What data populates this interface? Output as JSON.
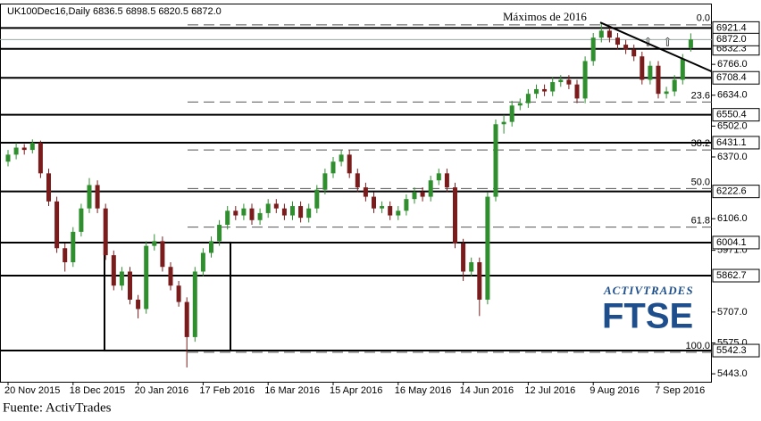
{
  "chart_data": {
    "type": "candlestick",
    "title": "UK100Dec16,Daily  6836.5 6898.5 6820.5 6872.0",
    "annotation": "Máximos de 2016",
    "source": "Fuente: ActivTrades",
    "logo_brand": "ActivTrades",
    "logo_index": "FTSE",
    "up_color": "#2f8f2f",
    "down_color": "#7a1c1c",
    "ylim": [
      5409,
      7022
    ],
    "yticks": [
      {
        "value": 6766,
        "label": "6766.0"
      },
      {
        "value": 6634,
        "label": "6634.0"
      },
      {
        "value": 6502,
        "label": "6502.0"
      },
      {
        "value": 6370,
        "label": "6370.0"
      },
      {
        "value": 6106,
        "label": "6106.0"
      },
      {
        "value": 5971,
        "label": "5971.0"
      },
      {
        "value": 5707,
        "label": "5707.0"
      },
      {
        "value": 5575,
        "label": "5575.0"
      },
      {
        "value": 5443,
        "label": "5443.0"
      }
    ],
    "levels": [
      6921.4,
      6832.3,
      6708.4,
      6550.4,
      6431.1,
      6222.6,
      6004.1,
      5862.7,
      5542.3
    ],
    "price_line": {
      "value": 6872,
      "label": "6872.0"
    },
    "fib_levels": [
      {
        "name": "0.0",
        "price": 6935
      },
      {
        "name": "23.6",
        "price": 6605
      },
      {
        "name": "38.2",
        "price": 6400
      },
      {
        "name": "50.0",
        "price": 6235
      },
      {
        "name": "61.8",
        "price": 6070
      },
      {
        "name": "100.0",
        "price": 5535
      }
    ],
    "trendline": [
      6945,
      6735
    ],
    "categories": [
      "20 Nov 2015",
      null,
      null,
      null,
      null,
      null,
      null,
      null,
      "18 Dec 2015",
      null,
      null,
      null,
      null,
      null,
      null,
      null,
      "20 Jan 2016",
      null,
      null,
      null,
      null,
      null,
      null,
      null,
      "17 Feb 2016",
      null,
      null,
      null,
      null,
      null,
      null,
      null,
      "16 Mar 2016",
      null,
      null,
      null,
      null,
      null,
      null,
      null,
      "15 Apr 2016",
      null,
      null,
      null,
      null,
      null,
      null,
      null,
      "16 May 2016",
      null,
      null,
      null,
      null,
      null,
      null,
      null,
      "14 Jun 2016",
      null,
      null,
      null,
      null,
      null,
      null,
      null,
      "12 Jul 2016",
      null,
      null,
      null,
      null,
      null,
      null,
      null,
      "9 Aug 2016",
      null,
      null,
      null,
      null,
      null,
      null,
      null,
      "7 Sep 2016",
      null,
      null,
      null,
      null
    ],
    "ohlc": [
      [
        6350,
        6400,
        6330,
        6380
      ],
      [
        6380,
        6430,
        6360,
        6410
      ],
      [
        6410,
        6425,
        6380,
        6400
      ],
      [
        6400,
        6445,
        6385,
        6430
      ],
      [
        6430,
        6440,
        6280,
        6300
      ],
      [
        6300,
        6320,
        6160,
        6180
      ],
      [
        6180,
        6200,
        5960,
        5980
      ],
      [
        5980,
        6000,
        5880,
        5920
      ],
      [
        5920,
        6070,
        5900,
        6050
      ],
      [
        6050,
        6170,
        6030,
        6150
      ],
      [
        6150,
        6280,
        6130,
        6250
      ],
      [
        6250,
        6270,
        6130,
        6150
      ],
      [
        6150,
        6170,
        5930,
        5950
      ],
      [
        5950,
        5970,
        5800,
        5820
      ],
      [
        5820,
        5900,
        5800,
        5880
      ],
      [
        5880,
        5900,
        5740,
        5760
      ],
      [
        5760,
        5780,
        5680,
        5720
      ],
      [
        5720,
        6010,
        5700,
        5990
      ],
      [
        5990,
        6040,
        5970,
        6010
      ],
      [
        6010,
        6030,
        5880,
        5900
      ],
      [
        5900,
        5920,
        5800,
        5820
      ],
      [
        5820,
        5840,
        5730,
        5750
      ],
      [
        5750,
        5770,
        5470,
        5600
      ],
      [
        5600,
        5900,
        5580,
        5880
      ],
      [
        5880,
        5980,
        5860,
        5960
      ],
      [
        5960,
        6030,
        5940,
        6010
      ],
      [
        6010,
        6100,
        5990,
        6080
      ],
      [
        6080,
        6160,
        6060,
        6140
      ],
      [
        6140,
        6160,
        6100,
        6120
      ],
      [
        6120,
        6170,
        6100,
        6150
      ],
      [
        6150,
        6170,
        6080,
        6100
      ],
      [
        6100,
        6150,
        6080,
        6130
      ],
      [
        6130,
        6190,
        6110,
        6170
      ],
      [
        6170,
        6190,
        6130,
        6150
      ],
      [
        6150,
        6170,
        6100,
        6120
      ],
      [
        6120,
        6180,
        6100,
        6160
      ],
      [
        6160,
        6180,
        6090,
        6110
      ],
      [
        6110,
        6170,
        6090,
        6150
      ],
      [
        6150,
        6250,
        6130,
        6230
      ],
      [
        6230,
        6320,
        6210,
        6300
      ],
      [
        6300,
        6370,
        6280,
        6350
      ],
      [
        6350,
        6400,
        6330,
        6380
      ],
      [
        6380,
        6400,
        6280,
        6300
      ],
      [
        6300,
        6320,
        6220,
        6240
      ],
      [
        6240,
        6260,
        6180,
        6200
      ],
      [
        6200,
        6220,
        6130,
        6150
      ],
      [
        6150,
        6180,
        6130,
        6160
      ],
      [
        6160,
        6180,
        6100,
        6120
      ],
      [
        6120,
        6160,
        6100,
        6140
      ],
      [
        6140,
        6210,
        6120,
        6190
      ],
      [
        6190,
        6240,
        6170,
        6220
      ],
      [
        6220,
        6240,
        6180,
        6200
      ],
      [
        6200,
        6290,
        6180,
        6270
      ],
      [
        6270,
        6320,
        6250,
        6300
      ],
      [
        6300,
        6320,
        6220,
        6240
      ],
      [
        6240,
        6260,
        5980,
        6000
      ],
      [
        6000,
        6020,
        5840,
        5880
      ],
      [
        5880,
        5940,
        5860,
        5920
      ],
      [
        5920,
        5940,
        5690,
        5760
      ],
      [
        5760,
        6220,
        5740,
        6200
      ],
      [
        6200,
        6530,
        6180,
        6510
      ],
      [
        6510,
        6550,
        6470,
        6520
      ],
      [
        6520,
        6610,
        6500,
        6590
      ],
      [
        6590,
        6620,
        6570,
        6600
      ],
      [
        6600,
        6660,
        6580,
        6640
      ],
      [
        6640,
        6680,
        6620,
        6660
      ],
      [
        6660,
        6680,
        6630,
        6650
      ],
      [
        6650,
        6710,
        6630,
        6690
      ],
      [
        6690,
        6720,
        6670,
        6700
      ],
      [
        6700,
        6720,
        6660,
        6680
      ],
      [
        6680,
        6700,
        6600,
        6620
      ],
      [
        6620,
        6800,
        6600,
        6780
      ],
      [
        6780,
        6900,
        6760,
        6880
      ],
      [
        6880,
        6940,
        6860,
        6910
      ],
      [
        6910,
        6930,
        6860,
        6880
      ],
      [
        6880,
        6900,
        6830,
        6850
      ],
      [
        6850,
        6870,
        6810,
        6830
      ],
      [
        6830,
        6850,
        6780,
        6800
      ],
      [
        6800,
        6820,
        6680,
        6700
      ],
      [
        6700,
        6780,
        6680,
        6760
      ],
      [
        6760,
        6780,
        6620,
        6640
      ],
      [
        6640,
        6670,
        6620,
        6650
      ],
      [
        6650,
        6720,
        6630,
        6700
      ],
      [
        6700,
        6810,
        6680,
        6790
      ],
      [
        6836.5,
        6898.5,
        6820.5,
        6872
      ]
    ]
  }
}
